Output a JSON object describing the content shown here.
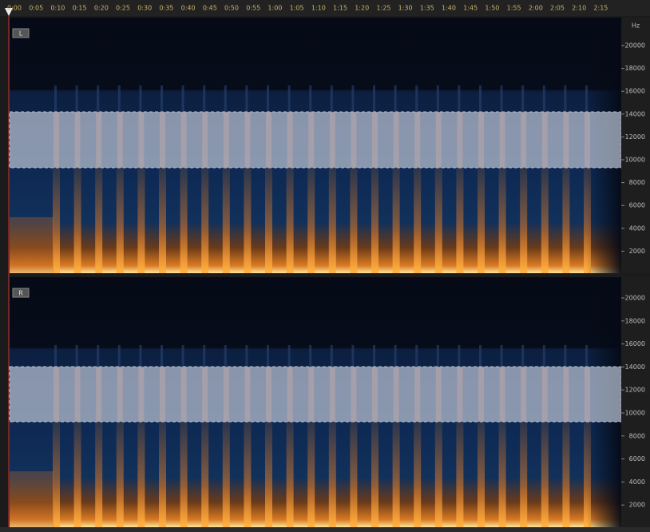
{
  "timeline": {
    "labels": [
      "0:00",
      "0:05",
      "0:10",
      "0:15",
      "0:20",
      "0:25",
      "0:30",
      "0:35",
      "0:40",
      "0:45",
      "0:50",
      "0:55",
      "1:00",
      "1:05",
      "1:10",
      "1:15",
      "1:20",
      "1:25",
      "1:30",
      "1:35",
      "1:40",
      "1:45",
      "1:50",
      "1:55",
      "2:00",
      "2:05",
      "2:10",
      "2:15"
    ]
  },
  "channels": [
    {
      "label": "L",
      "unit": "Hz",
      "freq_labels": [
        "20000",
        "18000",
        "16000",
        "14000",
        "12000",
        "10000",
        "8000",
        "6000",
        "4000",
        "2000"
      ]
    },
    {
      "label": "R",
      "freq_labels": [
        "20000",
        "18000",
        "16000",
        "14000",
        "12000",
        "10000",
        "8000",
        "6000",
        "4000",
        "2000"
      ]
    }
  ]
}
